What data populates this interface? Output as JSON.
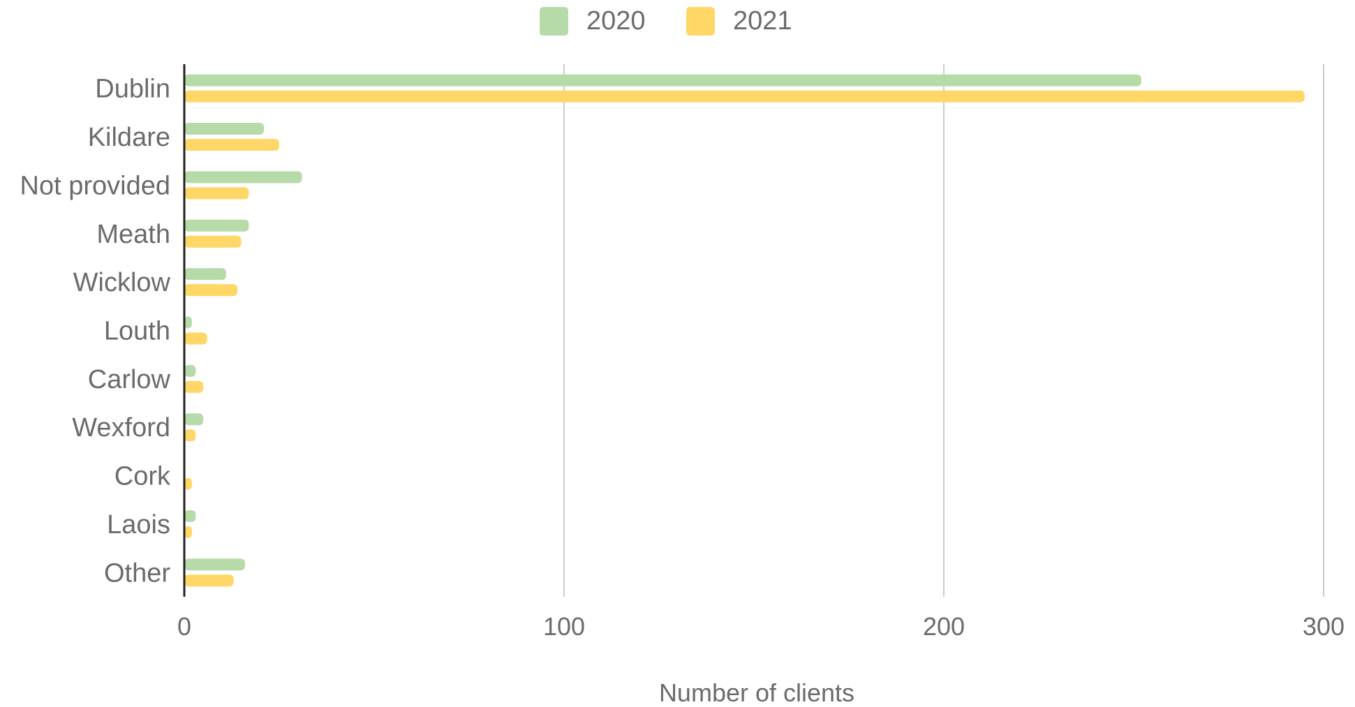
{
  "chart_data": {
    "type": "bar",
    "orientation": "horizontal",
    "categories": [
      "Dublin",
      "Kildare",
      "Not provided",
      "Meath",
      "Wicklow",
      "Louth",
      "Carlow",
      "Wexford",
      "Cork",
      "Laois",
      "Other"
    ],
    "series": [
      {
        "name": "2020",
        "color": "#b7dba8",
        "values": [
          252,
          21,
          31,
          17,
          11,
          2,
          3,
          5,
          0,
          3,
          16
        ]
      },
      {
        "name": "2021",
        "color": "#fed766",
        "values": [
          295,
          25,
          17,
          15,
          14,
          6,
          5,
          3,
          2,
          2,
          13
        ]
      }
    ],
    "xlabel": "Number of clients",
    "ylabel": "",
    "xlim": [
      0,
      300
    ],
    "xticks": [
      "0",
      "100",
      "200",
      "300"
    ],
    "grid": true,
    "legend_position": "top"
  }
}
